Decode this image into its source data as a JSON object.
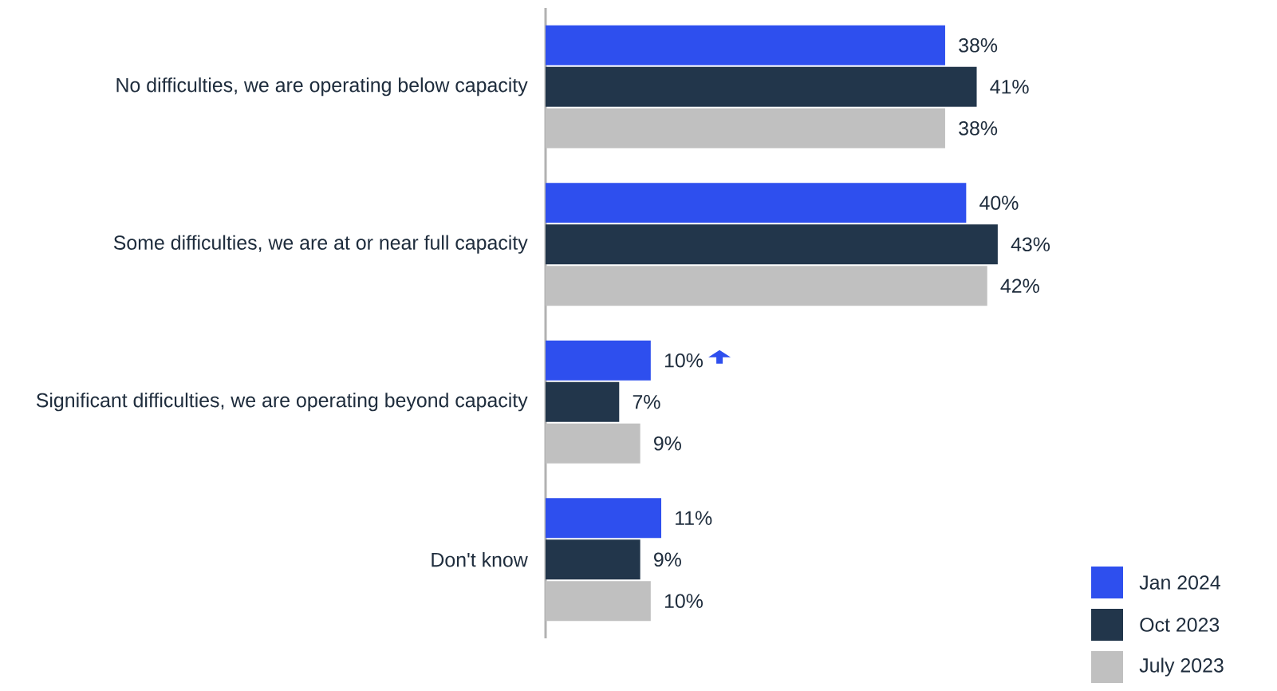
{
  "chart_data": {
    "type": "bar",
    "orientation": "horizontal",
    "legend": "bottom right",
    "categories": [
      "No difficulties, we are operating below capacity",
      "Some difficulties, we are at or near full capacity",
      "Significant difficulties, we are operating beyond capacity",
      "Don't know"
    ],
    "series": [
      {
        "name": "Jan 2024",
        "color": "#2e4fee",
        "values": [
          38,
          40,
          10,
          11
        ],
        "value_labels": [
          "38%",
          "40%",
          "10%",
          "11%"
        ]
      },
      {
        "name": "Oct 2023",
        "color": "#22364b",
        "values": [
          41,
          43,
          7,
          9
        ],
        "value_labels": [
          "41%",
          "43%",
          "7%",
          "9%"
        ]
      },
      {
        "name": "July 2023",
        "color": "#c0c0c0",
        "values": [
          38,
          42,
          9,
          10
        ],
        "value_labels": [
          "38%",
          "42%",
          "9%",
          "10%"
        ]
      }
    ]
  }
}
